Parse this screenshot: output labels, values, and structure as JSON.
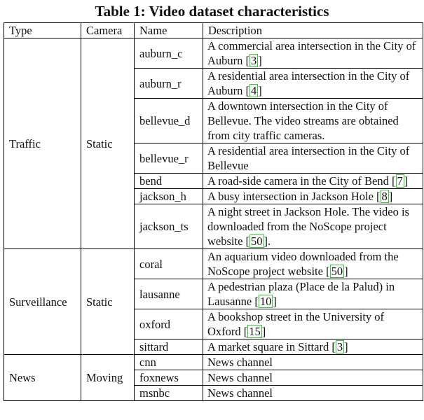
{
  "caption": "Table 1: Video dataset characteristics",
  "headers": [
    "Type",
    "Camera",
    "Name",
    "Description"
  ],
  "groups": [
    {
      "type": "Traffic",
      "camera": "Static",
      "rows": [
        {
          "name": "auburn_c",
          "desc": "A commercial area intersection in the City of Auburn [",
          "cite": "3",
          "tail": "]"
        },
        {
          "name": "auburn_r",
          "desc": "A residential area intersection in the City of Auburn [",
          "cite": "4",
          "tail": "]"
        },
        {
          "name": "bellevue_d",
          "desc": "A downtown intersection in the City of Bellevue. The video streams are obtained from city traffic cameras.",
          "cite": "",
          "tail": ""
        },
        {
          "name": "bellevue_r",
          "desc": "A residential area intersection in the City of Bellevue",
          "cite": "",
          "tail": ""
        },
        {
          "name": "bend",
          "desc": "A road-side camera in the City of Bend [",
          "cite": "7",
          "tail": "]"
        },
        {
          "name": "jackson_h",
          "desc": "A busy intersection in Jackson Hole [",
          "cite": "8",
          "tail": "]"
        },
        {
          "name": "jackson_ts",
          "desc": "A night street in Jackson Hole. The video is downloaded from the NoScope project website [",
          "cite": "50",
          "tail": "]."
        }
      ]
    },
    {
      "type": "Surveillance",
      "camera": "Static",
      "rows": [
        {
          "name": "coral",
          "desc": "An aquarium video downloaded from the NoScope project website [",
          "cite": "50",
          "tail": "]"
        },
        {
          "name": "lausanne",
          "desc": "A pedestrian plaza (Place de la Palud) in Lausanne [",
          "cite": "10",
          "tail": "]"
        },
        {
          "name": "oxford",
          "desc": "A bookshop street in the University of Oxford [",
          "cite": "15",
          "tail": "]"
        },
        {
          "name": "sittard",
          "desc": "A market square in Sittard [",
          "cite": "3",
          "tail": "]"
        }
      ]
    },
    {
      "type": "News",
      "camera": "Moving",
      "rows": [
        {
          "name": "cnn",
          "desc": "News channel",
          "cite": "",
          "tail": ""
        },
        {
          "name": "foxnews",
          "desc": "News channel",
          "cite": "",
          "tail": ""
        },
        {
          "name": "msnbc",
          "desc": "News channel",
          "cite": "",
          "tail": ""
        }
      ]
    }
  ]
}
